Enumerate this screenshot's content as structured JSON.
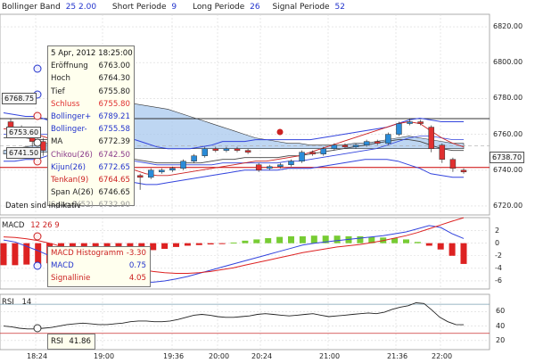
{
  "toolbar": {
    "bollinger_label": "Bollinger Band",
    "bollinger_values": "25  2.00",
    "short_label": "Short Periode",
    "short_value": "9",
    "long_label": "Long Periode",
    "long_value": "26",
    "signal_label": "Signal Periode",
    "signal_value": "52"
  },
  "info_box": {
    "date": "5 Apr, 2012 18:25:00",
    "rows": [
      {
        "label": "Eröffnung",
        "value": "6763.00",
        "color": "#222222"
      },
      {
        "label": "Hoch",
        "value": "6764.30",
        "color": "#222222"
      },
      {
        "label": "Tief",
        "value": "6755.80",
        "color": "#222222"
      },
      {
        "label": "Schluss",
        "value": "6755.80",
        "color": "#e03030"
      },
      {
        "label": "Bollinger+",
        "value": "6789.21",
        "color": "#2233cc"
      },
      {
        "label": "Bollinger-",
        "value": "6755.58",
        "color": "#2233cc"
      },
      {
        "label": "MA",
        "value": "6772.39",
        "color": "#222222"
      },
      {
        "label": "Chikou(26)",
        "value": "6742.50",
        "color": "#8a3a8a"
      },
      {
        "label": "Kijun(26)",
        "value": "6772.65",
        "color": "#2233cc"
      },
      {
        "label": "Tenkan(9)",
        "value": "6764.65",
        "color": "#cc2222"
      },
      {
        "label": "Span A(26)",
        "value": "6746.65",
        "color": "#222222"
      },
      {
        "label": "Span B(52)",
        "value": "6732.90",
        "color": "#999999"
      }
    ],
    "footer": "Daten sind indikativ"
  },
  "price_tags": {
    "left_top": "6768.75",
    "left_mid": "6753.60",
    "left_low": "6741.50",
    "right_current": "6738.70"
  },
  "macd_header": {
    "label": "MACD",
    "params": "12  26  9"
  },
  "macd_box": {
    "rows": [
      {
        "label": "MACD Histogramm",
        "value": "-3.30",
        "color": "#cc2222"
      },
      {
        "label": "MACD",
        "value": "0.75",
        "color": "#2233cc"
      },
      {
        "label": "Signallinie",
        "value": "4.05",
        "color": "#cc2222"
      }
    ]
  },
  "rsi_header": {
    "label": "RSI",
    "params": "14"
  },
  "rsi_box": {
    "label": "RSI",
    "value": "41.86"
  },
  "chart_data": [
    {
      "type": "candlestick",
      "title": "",
      "y_ticks": [
        "6820.00",
        "6800.00",
        "6780.00",
        "6760.00",
        "6740.00",
        "6720.00"
      ],
      "ylim": [
        6716,
        6826
      ],
      "x_ticks": [
        "18:24",
        "19:00",
        "19:36",
        "20:00",
        "20:24",
        "21:00",
        "21:36",
        "22:00"
      ],
      "candles": [
        {
          "o": 6767,
          "c": 6763,
          "h": 6769,
          "l": 6761
        },
        {
          "o": 6763,
          "c": 6760,
          "h": 6765,
          "l": 6758
        },
        {
          "o": 6760,
          "c": 6756,
          "h": 6763,
          "l": 6753
        },
        {
          "o": 6756,
          "c": 6751,
          "h": 6758,
          "l": 6748
        },
        {
          "o": 6751,
          "c": 6752,
          "h": 6754,
          "l": 6749
        },
        {
          "o": 6753,
          "c": 6751,
          "h": 6755,
          "l": 6749
        },
        {
          "o": 6751,
          "c": 6752,
          "h": 6753,
          "l": 6750
        },
        {
          "o": 6752,
          "c": 6751,
          "h": 6753,
          "l": 6750
        },
        {
          "o": 6751,
          "c": 6752,
          "h": 6753,
          "l": 6750
        },
        {
          "o": 6751,
          "c": 6750,
          "h": 6752,
          "l": 6749
        },
        {
          "o": 6750,
          "c": 6738,
          "h": 6751,
          "l": 6736
        },
        {
          "o": 6738,
          "c": 6737,
          "h": 6740,
          "l": 6735
        },
        {
          "o": 6737,
          "c": 6736,
          "h": 6738,
          "l": 6729
        },
        {
          "o": 6736,
          "c": 6740,
          "h": 6741,
          "l": 6735
        },
        {
          "o": 6739,
          "c": 6740,
          "h": 6741,
          "l": 6738
        },
        {
          "o": 6740,
          "c": 6741,
          "h": 6742,
          "l": 6739
        },
        {
          "o": 6741,
          "c": 6745,
          "h": 6746,
          "l": 6740
        },
        {
          "o": 6745,
          "c": 6748,
          "h": 6749,
          "l": 6744
        },
        {
          "o": 6748,
          "c": 6752,
          "h": 6753,
          "l": 6747
        },
        {
          "o": 6752,
          "c": 6751,
          "h": 6753,
          "l": 6750
        },
        {
          "o": 6751,
          "c": 6752,
          "h": 6753,
          "l": 6750
        },
        {
          "o": 6752,
          "c": 6751,
          "h": 6753,
          "l": 6750
        },
        {
          "o": 6751,
          "c": 6750,
          "h": 6752,
          "l": 6749
        },
        {
          "o": 6743,
          "c": 6740,
          "h": 6744,
          "l": 6739
        },
        {
          "o": 6741,
          "c": 6742,
          "h": 6743,
          "l": 6740
        },
        {
          "o": 6742,
          "c": 6743,
          "h": 6744,
          "l": 6741
        },
        {
          "o": 6743,
          "c": 6745,
          "h": 6746,
          "l": 6742
        },
        {
          "o": 6745,
          "c": 6750,
          "h": 6751,
          "l": 6744
        },
        {
          "o": 6750,
          "c": 6749,
          "h": 6751,
          "l": 6748
        },
        {
          "o": 6749,
          "c": 6752,
          "h": 6753,
          "l": 6748
        },
        {
          "o": 6752,
          "c": 6754,
          "h": 6755,
          "l": 6751
        },
        {
          "o": 6754,
          "c": 6753,
          "h": 6755,
          "l": 6752
        },
        {
          "o": 6753,
          "c": 6754,
          "h": 6755,
          "l": 6752
        },
        {
          "o": 6754,
          "c": 6756,
          "h": 6757,
          "l": 6753
        },
        {
          "o": 6756,
          "c": 6755,
          "h": 6757,
          "l": 6754
        },
        {
          "o": 6755,
          "c": 6760,
          "h": 6761,
          "l": 6754
        },
        {
          "o": 6760,
          "c": 6766,
          "h": 6767,
          "l": 6759
        },
        {
          "o": 6766,
          "c": 6767,
          "h": 6769,
          "l": 6765
        },
        {
          "o": 6767,
          "c": 6766,
          "h": 6768,
          "l": 6765
        },
        {
          "o": 6764,
          "c": 6752,
          "h": 6765,
          "l": 6750
        },
        {
          "o": 6754,
          "c": 6746,
          "h": 6755,
          "l": 6744
        },
        {
          "o": 6746,
          "c": 6741,
          "h": 6747,
          "l": 6739
        },
        {
          "o": 6740,
          "c": 6739,
          "h": 6741,
          "l": 6738
        }
      ],
      "series": [
        {
          "name": "Bollinger+",
          "values": [
            6772,
            6771,
            6770,
            6770,
            6768,
            6764,
            6760,
            6758,
            6757,
            6757,
            6758,
            6758,
            6757,
            6755,
            6753,
            6752,
            6752,
            6752,
            6753,
            6754,
            6756,
            6756,
            6756,
            6757,
            6757,
            6757,
            6757,
            6757,
            6757,
            6758,
            6759,
            6760,
            6761,
            6762,
            6763,
            6764,
            6766,
            6768,
            6769,
            6768,
            6767,
            6767,
            6767
          ]
        },
        {
          "name": "Bollinger-",
          "values": [
            6745,
            6745,
            6746,
            6746,
            6748,
            6749,
            6748,
            6746,
            6744,
            6742,
            6738,
            6735,
            6733,
            6732,
            6732,
            6733,
            6734,
            6735,
            6736,
            6737,
            6738,
            6739,
            6740,
            6740,
            6740,
            6740,
            6741,
            6741,
            6741,
            6742,
            6743,
            6744,
            6745,
            6746,
            6746,
            6746,
            6745,
            6743,
            6741,
            6738,
            6737,
            6736,
            6736
          ]
        },
        {
          "name": "MA",
          "values": [
            6758,
            6758,
            6758,
            6757,
            6757,
            6756,
            6754,
            6752,
            6751,
            6749,
            6748,
            6747,
            6746,
            6745,
            6744,
            6744,
            6744,
            6744,
            6744,
            6745,
            6746,
            6746,
            6747,
            6747,
            6747,
            6747,
            6748,
            6748,
            6749,
            6750,
            6751,
            6752,
            6753,
            6754,
            6755,
            6756,
            6757,
            6757,
            6756,
            6754,
            6752,
            6751,
            6751
          ]
        },
        {
          "name": "Kijun(26)",
          "values": [
            6760,
            6760,
            6760,
            6760,
            6760,
            6759,
            6757,
            6755,
            6753,
            6751,
            6749,
            6747,
            6745,
            6744,
            6743,
            6743,
            6743,
            6743,
            6743,
            6743,
            6744,
            6744,
            6744,
            6744,
            6744,
            6744,
            6745,
            6745,
            6746,
            6747,
            6748,
            6749,
            6750,
            6751,
            6752,
            6754,
            6756,
            6758,
            6759,
            6759,
            6758,
            6757,
            6757
          ]
        },
        {
          "name": "Tenkan(9)",
          "values": [
            6763,
            6763,
            6762,
            6760,
            6758,
            6756,
            6754,
            6752,
            6750,
            6747,
            6744,
            6742,
            6740,
            6738,
            6737,
            6737,
            6738,
            6739,
            6740,
            6741,
            6742,
            6743,
            6744,
            6745,
            6745,
            6746,
            6747,
            6748,
            6750,
            6752,
            6754,
            6756,
            6758,
            6760,
            6762,
            6764,
            6766,
            6767,
            6766,
            6762,
            6758,
            6755,
            6753
          ]
        },
        {
          "name": "Span A(26)",
          "values": [
            6751,
            6752,
            6753,
            6754,
            6755,
            6757,
            6759,
            6762,
            6766,
            6770,
            6774,
            6776,
            6777,
            6776,
            6775,
            6774,
            6772,
            6770,
            6768,
            6766,
            6764,
            6762,
            6760,
            6758,
            6757,
            6756,
            6755,
            6755,
            6754,
            6754,
            6754,
            6754,
            6755,
            6755,
            6756,
            6757,
            6758,
            6759,
            6758,
            6757,
            6756,
            6755,
            6755
          ]
        },
        {
          "name": "Span B(52)",
          "values": [
            6749,
            6749,
            6749,
            6750,
            6750,
            6750,
            6751,
            6751,
            6752,
            6752,
            6752,
            6752,
            6752,
            6752,
            6752,
            6752,
            6752,
            6752,
            6752,
            6752,
            6752,
            6752,
            6752,
            6752,
            6752,
            6752,
            6752,
            6752,
            6752,
            6752,
            6752,
            6752,
            6752,
            6752,
            6752,
            6752,
            6752,
            6752,
            6752,
            6752,
            6752,
            6752,
            6752
          ]
        }
      ],
      "horizontal_lines": [
        {
          "value": 6768.75,
          "color": "#333333"
        },
        {
          "value": 6741.5,
          "color": "#cc0000"
        },
        {
          "value": 6753.6,
          "color": "#aaaaaa"
        }
      ]
    },
    {
      "type": "bar",
      "title": "MACD",
      "y_ticks": [
        "2",
        "0",
        "-2",
        "-4",
        "-6"
      ],
      "ylim": [
        -7,
        3.5
      ],
      "histogram": [
        -3.5,
        -3.5,
        -3.4,
        -3.3,
        -3.2,
        -3.0,
        -2.8,
        -2.5,
        -2.2,
        -2.0,
        -1.7,
        -1.5,
        -1.3,
        -1.1,
        -0.9,
        -0.6,
        -0.4,
        -0.3,
        -0.2,
        -0.1,
        0.1,
        0.4,
        0.6,
        0.8,
        1.0,
        1.1,
        1.1,
        1.2,
        1.2,
        1.2,
        1.1,
        1.1,
        1.0,
        0.9,
        0.8,
        0.6,
        0.2,
        -0.4,
        -1.0,
        -2.0,
        -3.3
      ],
      "series": [
        {
          "name": "MACD",
          "values": [
            0.5,
            0.2,
            -0.5,
            -1.2,
            -2.0,
            -2.8,
            -3.5,
            -4.2,
            -4.8,
            -5.3,
            -5.7,
            -6.0,
            -6.2,
            -6.2,
            -6.0,
            -5.7,
            -5.3,
            -4.8,
            -4.3,
            -3.8,
            -3.3,
            -2.8,
            -2.3,
            -1.8,
            -1.3,
            -0.8,
            -0.3,
            0.0,
            0.2,
            0.4,
            0.6,
            0.8,
            1.0,
            1.2,
            1.5,
            1.8,
            2.3,
            2.8,
            2.5,
            1.5,
            0.75
          ]
        },
        {
          "name": "Signallinie",
          "values": [
            1.0,
            0.9,
            0.7,
            0.4,
            0.0,
            -0.5,
            -1.0,
            -1.6,
            -2.2,
            -2.8,
            -3.3,
            -3.8,
            -4.2,
            -4.5,
            -4.7,
            -4.8,
            -4.8,
            -4.7,
            -4.5,
            -4.2,
            -3.9,
            -3.5,
            -3.1,
            -2.7,
            -2.3,
            -1.9,
            -1.5,
            -1.2,
            -0.9,
            -0.6,
            -0.4,
            -0.2,
            0.1,
            0.4,
            0.8,
            1.2,
            1.7,
            2.3,
            2.9,
            3.5,
            4.05
          ]
        }
      ]
    },
    {
      "type": "line",
      "title": "RSI",
      "y_ticks": [
        "60",
        "40",
        "20"
      ],
      "ylim": [
        10,
        80
      ],
      "guides": [
        70,
        30
      ],
      "series": [
        {
          "name": "RSI",
          "values": [
            40,
            39,
            37,
            36,
            36,
            37,
            38,
            40,
            42,
            43,
            44,
            43,
            42,
            42,
            43,
            44,
            46,
            47,
            47,
            46,
            46,
            47,
            49,
            52,
            55,
            56,
            55,
            53,
            52,
            52,
            53,
            54,
            56,
            57,
            56,
            55,
            54,
            55,
            56,
            57,
            55,
            53,
            54,
            55,
            56,
            57,
            58,
            57,
            59,
            63,
            66,
            68,
            72,
            71,
            62,
            52,
            46,
            42,
            41.86
          ]
        }
      ]
    }
  ],
  "colors": {
    "grid": "#d8d8d8",
    "bull": "#2a8bd8",
    "bear": "#e03030",
    "cloud": "#a8c8ee",
    "hist_pos": "#77cc33",
    "hist_neg": "#dd2222"
  }
}
